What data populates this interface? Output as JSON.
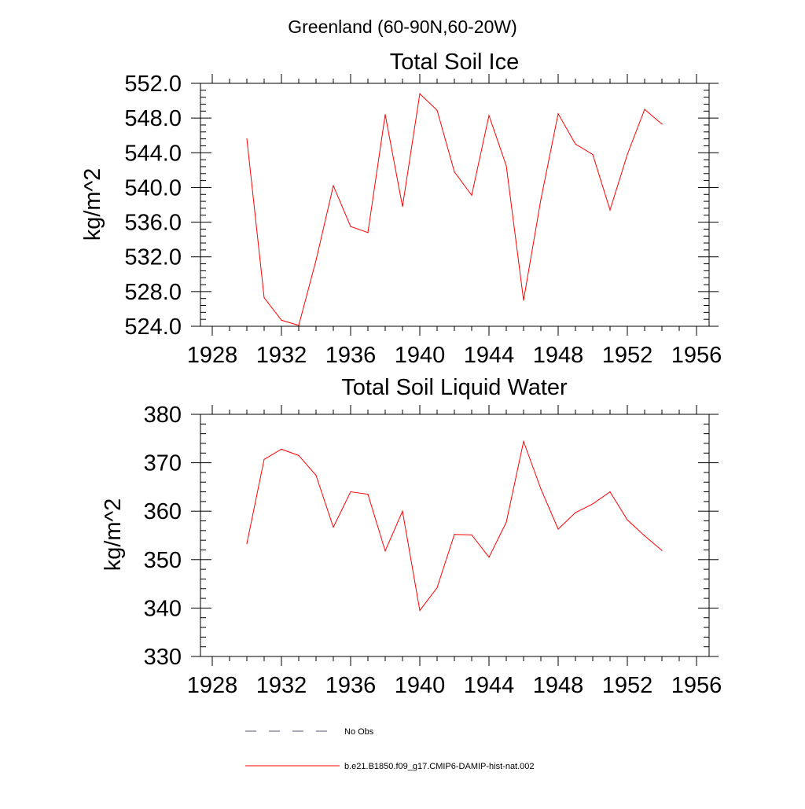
{
  "page_title": "Greenland (60-90N,60-20W)",
  "chart_data": [
    {
      "type": "line",
      "title": "Total Soil Ice",
      "xlabel": "",
      "ylabel": "kg/m^2",
      "xlim": [
        1928,
        1956
      ],
      "ylim": [
        524,
        552
      ],
      "x_ticks": [
        "1928",
        "1932",
        "1936",
        "1940",
        "1944",
        "1948",
        "1952",
        "1956"
      ],
      "y_ticks": [
        "524.0",
        "528.0",
        "532.0",
        "536.0",
        "540.0",
        "544.0",
        "548.0",
        "552.0"
      ],
      "x": [
        1930,
        1931,
        1932,
        1933,
        1934,
        1935,
        1936,
        1937,
        1938,
        1939,
        1940,
        1941,
        1942,
        1943,
        1944,
        1945,
        1946,
        1947,
        1948,
        1949,
        1950,
        1951,
        1952,
        1953,
        1954
      ],
      "series": [
        {
          "color": "#ff0000",
          "values": [
            545.6,
            527.3,
            524.7,
            524.1,
            531.6,
            540.2,
            535.5,
            534.8,
            548.4,
            537.8,
            550.8,
            548.9,
            541.8,
            539.1,
            548.3,
            542.5,
            527.0,
            538.6,
            548.5,
            545.0,
            543.8,
            537.4,
            543.8,
            549.0,
            547.3
          ]
        }
      ]
    },
    {
      "type": "line",
      "title": "Total Soil Liquid Water",
      "xlabel": "",
      "ylabel": "kg/m^2",
      "xlim": [
        1928,
        1956
      ],
      "ylim": [
        330,
        380
      ],
      "x_ticks": [
        "1928",
        "1932",
        "1936",
        "1940",
        "1944",
        "1948",
        "1952",
        "1956"
      ],
      "y_ticks": [
        "330",
        "340",
        "350",
        "360",
        "370",
        "380"
      ],
      "x": [
        1930,
        1931,
        1932,
        1933,
        1934,
        1935,
        1936,
        1937,
        1938,
        1939,
        1940,
        1941,
        1942,
        1943,
        1944,
        1945,
        1946,
        1947,
        1948,
        1949,
        1950,
        1951,
        1952,
        1953,
        1954
      ],
      "series": [
        {
          "color": "#ff0000",
          "values": [
            353.3,
            370.7,
            372.8,
            371.5,
            367.4,
            356.7,
            364.0,
            363.5,
            351.8,
            360.0,
            339.5,
            344.2,
            355.2,
            355.1,
            350.5,
            357.7,
            374.4,
            364.6,
            356.3,
            359.7,
            361.5,
            364.0,
            358.2,
            354.9,
            351.9
          ]
        }
      ]
    }
  ],
  "legend": [
    {
      "label": "No Obs",
      "style": "dashed",
      "color": "#555577"
    },
    {
      "label": "b.e21.B1850.f09_g17.CMIP6-DAMIP-hist-nat.002",
      "style": "solid",
      "color": "#ff0000"
    }
  ]
}
